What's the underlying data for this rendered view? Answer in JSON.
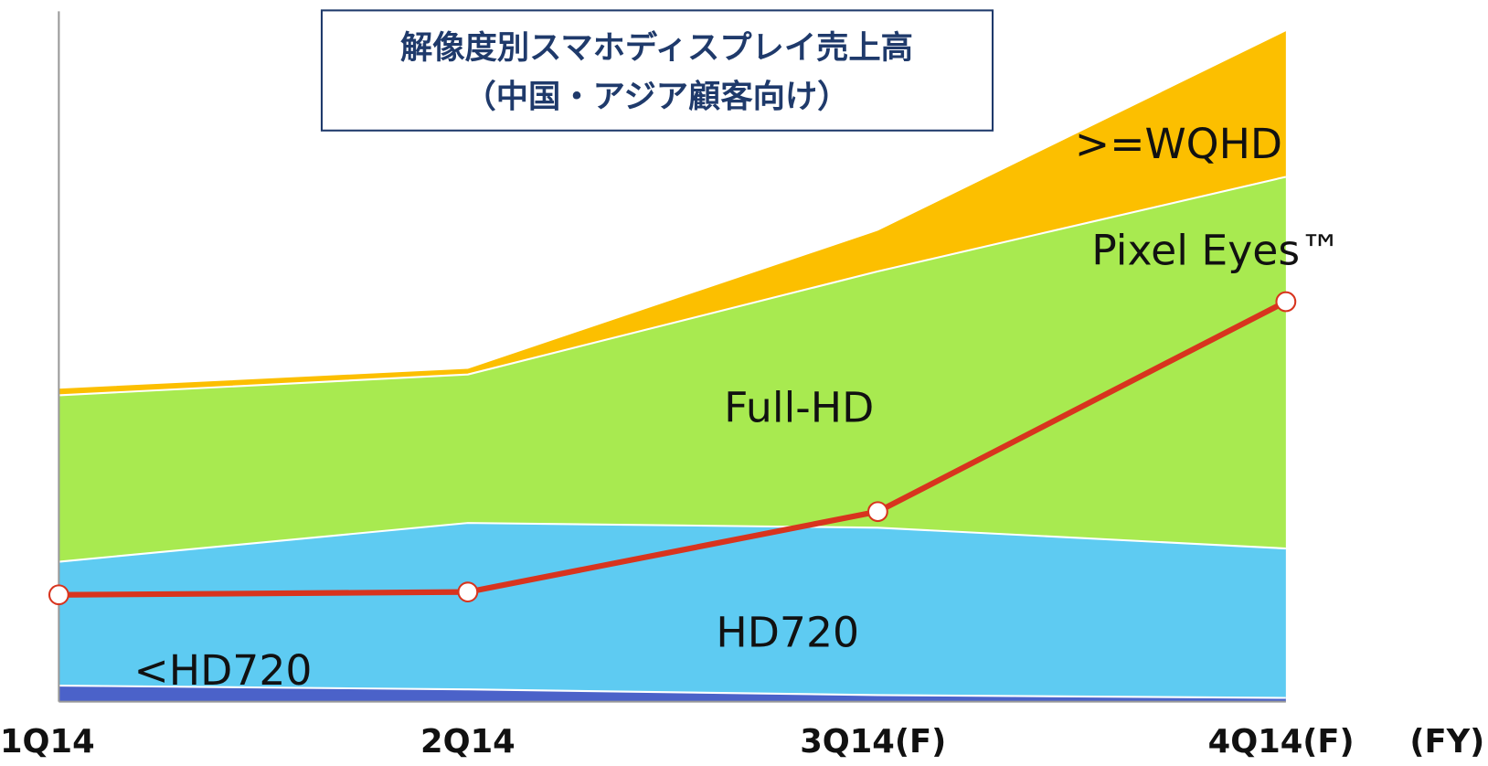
{
  "chart_data": {
    "type": "area",
    "title": [
      "解像度別スマホディスプレイ売上高",
      "（中国・アジア顧客向け）"
    ],
    "categories": [
      "1Q14",
      "2Q14",
      "3Q14(F)",
      "4Q14(F)"
    ],
    "xlabel": "(FY)",
    "stacked": true,
    "ylim": [
      0,
      720
    ],
    "series": [
      {
        "name": "<HD720",
        "color": "#4b62c9",
        "values": [
          17,
          13,
          7,
          4
        ]
      },
      {
        "name": "HD720",
        "color": "#5ecbf2",
        "values": [
          131,
          176,
          177,
          158
        ]
      },
      {
        "name": "Full-HD",
        "color": "#a8ea50",
        "values": [
          176,
          157,
          271,
          393
        ]
      },
      {
        "name": ">=WQHD",
        "color": "#fcbf00",
        "values": [
          7,
          6,
          43,
          154
        ]
      },
      {
        "name": "Pixel Eyes™",
        "color": "#d8341e",
        "type": "line",
        "values": [
          113,
          116,
          201,
          423
        ]
      }
    ]
  }
}
